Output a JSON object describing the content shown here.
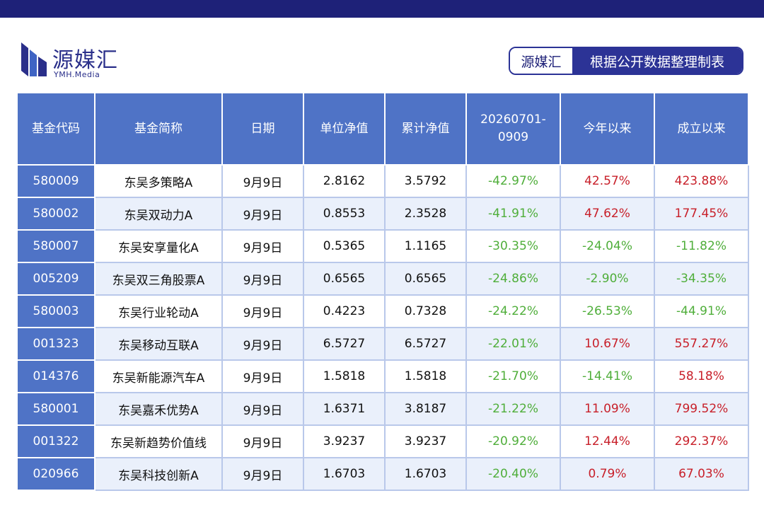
{
  "header": {
    "logo_cn": "源媒汇",
    "logo_en": "YMH.Media",
    "source_brand": "源媒汇",
    "source_note": "根据公开数据整理制表"
  },
  "colors": {
    "header_bg": "#4f73c6",
    "positive": "#c8202a",
    "negative": "#4fae3a",
    "brand": "#1e2178"
  },
  "table": {
    "columns": [
      "基金代码",
      "基金简称",
      "日期",
      "单位净值",
      "累计净值",
      "20260701-0909",
      "今年以来",
      "成立以来"
    ],
    "rows": [
      [
        "580009",
        "东吴多策略A",
        "9月9日",
        "2.8162",
        "3.5792",
        "-42.97%",
        "42.57%",
        "423.88%"
      ],
      [
        "580002",
        "东吴双动力A",
        "9月9日",
        "0.8553",
        "2.3528",
        "-41.91%",
        "47.62%",
        "177.45%"
      ],
      [
        "580007",
        "东吴安享量化A",
        "9月9日",
        "0.5365",
        "1.1165",
        "-30.35%",
        "-24.04%",
        "-11.82%"
      ],
      [
        "005209",
        "东吴双三角股票A",
        "9月9日",
        "0.6565",
        "0.6565",
        "-24.86%",
        "-2.90%",
        "-34.35%"
      ],
      [
        "580003",
        "东吴行业轮动A",
        "9月9日",
        "0.4223",
        "0.7328",
        "-24.22%",
        "-26.53%",
        "-44.91%"
      ],
      [
        "001323",
        "东吴移动互联A",
        "9月9日",
        "6.5727",
        "6.5727",
        "-22.01%",
        "10.67%",
        "557.27%"
      ],
      [
        "014376",
        "东吴新能源汽车A",
        "9月9日",
        "1.5818",
        "1.5818",
        "-21.70%",
        "-14.41%",
        "58.18%"
      ],
      [
        "580001",
        "东吴嘉禾优势A",
        "9月9日",
        "1.6371",
        "3.8187",
        "-21.22%",
        "11.09%",
        "799.52%"
      ],
      [
        "001322",
        "东吴新趋势价值线",
        "9月9日",
        "3.9237",
        "3.9237",
        "-20.92%",
        "12.44%",
        "292.37%"
      ],
      [
        "020966",
        "东吴科技创新A",
        "9月9日",
        "1.6703",
        "1.6703",
        "-20.40%",
        "0.79%",
        "67.03%"
      ]
    ]
  }
}
